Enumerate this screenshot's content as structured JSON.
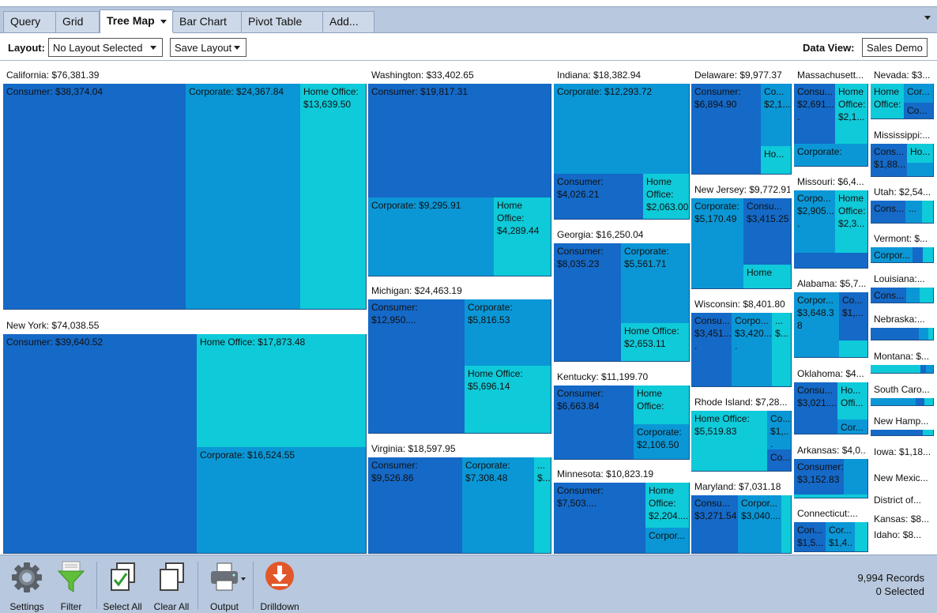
{
  "tabs": [
    {
      "label": "Query"
    },
    {
      "label": "Grid"
    },
    {
      "label": "Tree Map"
    },
    {
      "label": "Bar Chart"
    },
    {
      "label": "Pivot Table"
    },
    {
      "label": "Add..."
    }
  ],
  "layoutbar": {
    "layout_label": "Layout:",
    "layout_value": "No Layout Selected",
    "save_label": "Save Layout",
    "dataview_label": "Data View:",
    "dataview_value": "Sales Demo"
  },
  "treemap": [
    {
      "label": "California: $76,381.39",
      "cells": [
        {
          "text": "Consumer: $38,374.04"
        },
        {
          "text": "Corporate: $24,367.84"
        },
        {
          "text": "Home Office: $13,639.50"
        }
      ]
    },
    {
      "label": "New York: $74,038.55",
      "cells": [
        {
          "text": "Consumer: $39,640.52"
        },
        {
          "text": "Home Office: $17,873.48"
        },
        {
          "text": "Corporate: $16,524.55"
        }
      ]
    },
    {
      "label": "Washington: $33,402.65",
      "cells": [
        {
          "text": "Consumer: $19,817.31"
        },
        {
          "text": "Corporate: $9,295.91"
        },
        {
          "text": "Home Office: $4,289.44"
        }
      ]
    },
    {
      "label": "Michigan: $24,463.19",
      "cells": [
        {
          "text": "Consumer: $12,950...."
        },
        {
          "text": "Corporate: $5,816.53"
        },
        {
          "text": "Home Office: $5,696.14"
        }
      ]
    },
    {
      "label": "Virginia: $18,597.95",
      "cells": [
        {
          "text": "Consumer: $9,526.86"
        },
        {
          "text": "Corporate: $7,308.48"
        },
        {
          "text": "... $..."
        }
      ]
    },
    {
      "label": "Indiana: $18,382.94",
      "cells": [
        {
          "text": "Corporate: $12,293.72"
        },
        {
          "text": "Consumer: $4,026.21"
        },
        {
          "text": "Home Office: $2,063.00"
        }
      ]
    },
    {
      "label": "Georgia: $16,250.04",
      "cells": [
        {
          "text": "Consumer: $8,035.23"
        },
        {
          "text": "Corporate: $5,561.71"
        },
        {
          "text": "Home Office: $2,653.11"
        }
      ]
    },
    {
      "label": "Kentucky: $11,199.70",
      "cells": [
        {
          "text": "Consumer: $6,663.84"
        },
        {
          "text": "Home Office:"
        },
        {
          "text": "Corporate: $2,106.50"
        }
      ]
    },
    {
      "label": "Minnesota: $10,823.19",
      "cells": [
        {
          "text": "Consumer: $7,503...."
        },
        {
          "text": "Home Office: $2,204...."
        },
        {
          "text": "Corpor..."
        }
      ]
    },
    {
      "label": "Delaware: $9,977.37",
      "cells": [
        {
          "text": "Consumer: $6,894.90"
        },
        {
          "text": "Co... $2,1..."
        },
        {
          "text": "Ho..."
        }
      ]
    },
    {
      "label": "New Jersey: $9,772.91",
      "cells": [
        {
          "text": "Corporate: $5,170.49"
        },
        {
          "text": "Consu... $3,415.25"
        },
        {
          "text": "Home"
        }
      ]
    },
    {
      "label": "Wisconsin: $8,401.80",
      "cells": [
        {
          "text": "Consu... $3,451...."
        },
        {
          "text": "Corpo... $3,420...."
        },
        {
          "text": "... $..."
        }
      ]
    },
    {
      "label": "Rhode Island: $7,28...",
      "cells": [
        {
          "text": "Home Office: $5,519.83"
        },
        {
          "text": "Co... $1,..."
        },
        {
          "text": "Co..."
        }
      ]
    },
    {
      "label": "Maryland: $7,031.18",
      "cells": [
        {
          "text": "Consu... $3,271.54"
        },
        {
          "text": "Corpor... $3,040...."
        },
        {
          "text": ""
        }
      ]
    },
    {
      "label": "Massachusett...",
      "cells": [
        {
          "text": "Consu... $2,691...."
        },
        {
          "text": "Home Office: $2,1..."
        },
        {
          "text": "Corporate:"
        }
      ]
    },
    {
      "label": "Missouri: $6,4...",
      "cells": [
        {
          "text": "Corpo... $2,905...."
        },
        {
          "text": "Home Office: $2,3..."
        },
        {
          "text": ""
        }
      ]
    },
    {
      "label": "Alabama: $5,7...",
      "cells": [
        {
          "text": "Corpor... $3,648.38"
        },
        {
          "text": "Co... $1,..."
        },
        {
          "text": ""
        }
      ]
    },
    {
      "label": "Oklahoma: $4...",
      "cells": [
        {
          "text": "Consu... $3,021...."
        },
        {
          "text": "Ho... Offi..."
        },
        {
          "text": "Cor..."
        }
      ]
    },
    {
      "label": "Arkansas: $4,0...",
      "cells": [
        {
          "text": "Consumer: $3,152.83"
        },
        {
          "text": ""
        },
        {
          "text": ""
        }
      ]
    },
    {
      "label": "Connecticut:...",
      "cells": [
        {
          "text": "Con... $1,5..."
        },
        {
          "text": "Cor... $1,4..."
        },
        {
          "text": ""
        }
      ]
    },
    {
      "label": "Nevada: $3...",
      "cells": [
        {
          "text": "Home Office:"
        },
        {
          "text": "Cor..."
        },
        {
          "text": "Co..."
        }
      ]
    },
    {
      "label": "Mississippi:...",
      "cells": [
        {
          "text": "Cons... $1,88..."
        },
        {
          "text": "Ho..."
        },
        {
          "text": ""
        }
      ]
    },
    {
      "label": "Utah: $2,54...",
      "cells": [
        {
          "text": "Cons..."
        },
        {
          "text": "..."
        },
        {
          "text": ""
        }
      ]
    },
    {
      "label": "Vermont: $...",
      "cells": [
        {
          "text": "Corpor..."
        },
        {
          "text": ""
        },
        {
          "text": ""
        }
      ]
    },
    {
      "label": "Louisiana:...",
      "cells": [
        {
          "text": "Cons..."
        },
        {
          "text": ""
        },
        {
          "text": ""
        }
      ]
    },
    {
      "label": "Nebraska:...",
      "cells": [
        {
          "text": ""
        },
        {
          "text": ""
        },
        {
          "text": ""
        }
      ]
    },
    {
      "label": "Montana: $...",
      "cells": [
        {
          "text": ""
        },
        {
          "text": ""
        },
        {
          "text": ""
        }
      ]
    },
    {
      "label": "South Caro...",
      "cells": [
        {
          "text": ""
        },
        {
          "text": ""
        },
        {
          "text": ""
        }
      ]
    },
    {
      "label": "New Hamp...",
      "cells": [
        {
          "text": ""
        },
        {
          "text": ""
        },
        {
          "text": ""
        }
      ]
    },
    {
      "label": "Iowa: $1,18..."
    },
    {
      "label": "New Mexic..."
    },
    {
      "label": "District of..."
    },
    {
      "label": "Kansas: $8..."
    },
    {
      "label": "Idaho: $8..."
    }
  ],
  "colors": {
    "consumer": "#1569c7",
    "corporate": "#0b97d6",
    "home_office": "#0fcad9"
  },
  "toolbar": {
    "buttons": [
      {
        "label": "Settings",
        "icon": "gear-icon"
      },
      {
        "label": "Filter",
        "icon": "funnel-icon"
      },
      {
        "label": "Select All",
        "icon": "select-all-icon"
      },
      {
        "label": "Clear All",
        "icon": "clear-all-icon"
      },
      {
        "label": "Output",
        "icon": "printer-icon"
      },
      {
        "label": "Drilldown",
        "icon": "drilldown-icon"
      }
    ],
    "records": "9,994 Records",
    "selected": "0 Selected"
  }
}
